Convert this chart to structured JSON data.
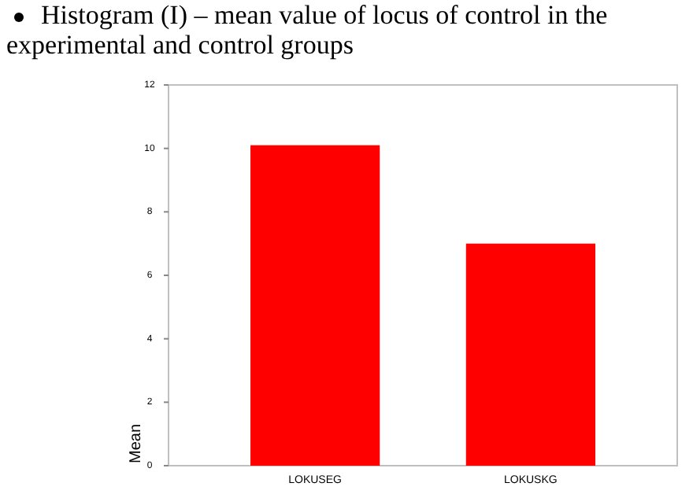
{
  "chart_data": {
    "type": "bar",
    "title": "Histogram (I) – mean value of locus of control in the experimental and control groups",
    "ylabel": "Mean",
    "categories": [
      "LOKUSEG",
      "LOKUSKG"
    ],
    "values": [
      10.1,
      7.0
    ],
    "color": "#ff0000",
    "ylim": [
      0,
      12
    ],
    "yticks": [
      0,
      2,
      4,
      6,
      8,
      10,
      12
    ],
    "grid": false
  }
}
